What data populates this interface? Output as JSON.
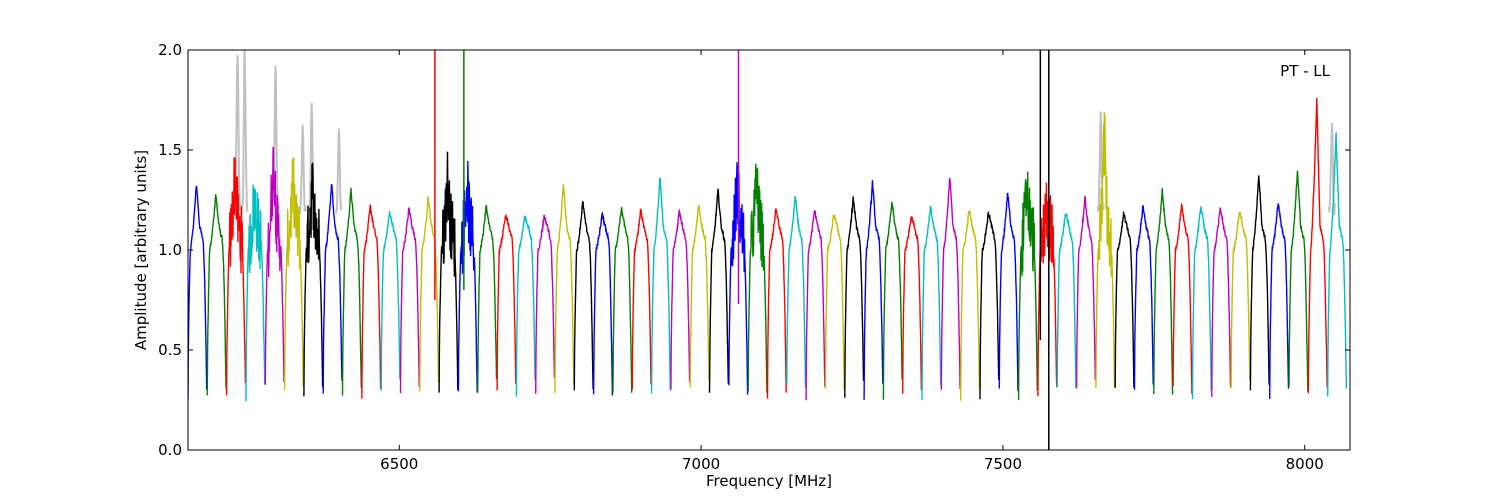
{
  "chart_data": {
    "type": "line",
    "title": "",
    "annotation": "PT - LL",
    "xlabel": "Frequency [MHz]",
    "ylabel": "Amplitude [arbitrary units]",
    "xlim": [
      6150,
      8075
    ],
    "ylim": [
      0.0,
      2.0
    ],
    "xticks": [
      6500,
      7000,
      7500,
      8000
    ],
    "xtick_labels": [
      "6500",
      "7000",
      "7500",
      "8000"
    ],
    "yticks": [
      0.0,
      0.5,
      1.0,
      1.5,
      2.0
    ],
    "ytick_labels": [
      "0.0",
      "0.5",
      "1.0",
      "1.5",
      "2.0"
    ],
    "grid": false,
    "legend": "none",
    "color_cycle": [
      "#0000ff",
      "#008000",
      "#ff0000",
      "#00bfbf",
      "#bf00bf",
      "#bfbf00",
      "#000000"
    ],
    "background_color": "#c0c0c0",
    "channel_width_mhz": 32,
    "bands": [
      {
        "start": 6150,
        "peak": 1.33,
        "rfi": false
      },
      {
        "start": 6182,
        "peak": 1.28,
        "rfi": false
      },
      {
        "start": 6214,
        "peak": 1.4,
        "rfi": true
      },
      {
        "start": 6246,
        "peak": 1.25,
        "rfi": true
      },
      {
        "start": 6278,
        "peak": 1.46,
        "rfi": true
      },
      {
        "start": 6310,
        "peak": 1.33,
        "rfi": true
      },
      {
        "start": 6342,
        "peak": 1.32,
        "rfi": true
      },
      {
        "start": 6374,
        "peak": 1.34,
        "rfi": false
      },
      {
        "start": 6406,
        "peak": 1.3,
        "rfi": false
      },
      {
        "start": 6438,
        "peak": 1.22,
        "rfi": false
      },
      {
        "start": 6470,
        "peak": 1.19,
        "rfi": false
      },
      {
        "start": 6502,
        "peak": 1.21,
        "rfi": false
      },
      {
        "start": 6534,
        "peak": 1.26,
        "rfi": false
      },
      {
        "start": 6566,
        "peak": 1.35,
        "rfi": true
      },
      {
        "start": 6598,
        "peak": 1.33,
        "rfi": true
      },
      {
        "start": 6630,
        "peak": 1.22,
        "rfi": false
      },
      {
        "start": 6662,
        "peak": 1.18,
        "rfi": false
      },
      {
        "start": 6694,
        "peak": 1.17,
        "rfi": false
      },
      {
        "start": 6726,
        "peak": 1.17,
        "rfi": false
      },
      {
        "start": 6758,
        "peak": 1.33,
        "rfi": false
      },
      {
        "start": 6790,
        "peak": 1.24,
        "rfi": false
      },
      {
        "start": 6822,
        "peak": 1.18,
        "rfi": false
      },
      {
        "start": 6854,
        "peak": 1.21,
        "rfi": false
      },
      {
        "start": 6886,
        "peak": 1.2,
        "rfi": false
      },
      {
        "start": 6918,
        "peak": 1.37,
        "rfi": false
      },
      {
        "start": 6950,
        "peak": 1.2,
        "rfi": false
      },
      {
        "start": 6982,
        "peak": 1.22,
        "rfi": false
      },
      {
        "start": 7014,
        "peak": 1.3,
        "rfi": false
      },
      {
        "start": 7046,
        "peak": 1.33,
        "rfi": true
      },
      {
        "start": 7078,
        "peak": 1.34,
        "rfi": true
      },
      {
        "start": 7110,
        "peak": 1.21,
        "rfi": false
      },
      {
        "start": 7142,
        "peak": 1.27,
        "rfi": false
      },
      {
        "start": 7174,
        "peak": 1.2,
        "rfi": false
      },
      {
        "start": 7206,
        "peak": 1.18,
        "rfi": false
      },
      {
        "start": 7238,
        "peak": 1.26,
        "rfi": false
      },
      {
        "start": 7270,
        "peak": 1.34,
        "rfi": false
      },
      {
        "start": 7302,
        "peak": 1.24,
        "rfi": false
      },
      {
        "start": 7334,
        "peak": 1.17,
        "rfi": false
      },
      {
        "start": 7366,
        "peak": 1.21,
        "rfi": false
      },
      {
        "start": 7398,
        "peak": 1.37,
        "rfi": false
      },
      {
        "start": 7430,
        "peak": 1.2,
        "rfi": false
      },
      {
        "start": 7462,
        "peak": 1.19,
        "rfi": false
      },
      {
        "start": 7494,
        "peak": 1.29,
        "rfi": false
      },
      {
        "start": 7526,
        "peak": 1.31,
        "rfi": true
      },
      {
        "start": 7558,
        "peak": 1.2,
        "rfi": true
      },
      {
        "start": 7590,
        "peak": 1.19,
        "rfi": false
      },
      {
        "start": 7622,
        "peak": 1.26,
        "rfi": false
      },
      {
        "start": 7654,
        "peak": 1.58,
        "rfi": true
      },
      {
        "start": 7686,
        "peak": 1.18,
        "rfi": false
      },
      {
        "start": 7718,
        "peak": 1.22,
        "rfi": false
      },
      {
        "start": 7750,
        "peak": 1.3,
        "rfi": false
      },
      {
        "start": 7782,
        "peak": 1.23,
        "rfi": false
      },
      {
        "start": 7814,
        "peak": 1.22,
        "rfi": false
      },
      {
        "start": 7846,
        "peak": 1.21,
        "rfi": false
      },
      {
        "start": 7878,
        "peak": 1.2,
        "rfi": false
      },
      {
        "start": 7910,
        "peak": 1.38,
        "rfi": false
      },
      {
        "start": 7942,
        "peak": 1.24,
        "rfi": false
      },
      {
        "start": 7974,
        "peak": 1.4,
        "rfi": false
      },
      {
        "start": 8006,
        "peak": 1.76,
        "rfi": false
      },
      {
        "start": 8038,
        "peak": 1.58,
        "rfi": false
      }
    ],
    "spikes": [
      {
        "x": 6559,
        "y0": 0.75,
        "y1": 2.0,
        "color": "#ff0000"
      },
      {
        "x": 6607,
        "y0": 0.8,
        "y1": 2.0,
        "color": "#008000"
      },
      {
        "x": 7062,
        "y0": 0.73,
        "y1": 2.0,
        "color": "#bf00bf"
      },
      {
        "x": 7562,
        "y0": 0.55,
        "y1": 2.0,
        "color": "#000000"
      },
      {
        "x": 7576,
        "y0": 0.0,
        "y1": 2.0,
        "color": "#000000"
      }
    ],
    "flagged_peaks": [
      {
        "x": 6232,
        "y": 2.0
      },
      {
        "x": 6244,
        "y": 2.0
      },
      {
        "x": 6295,
        "y": 1.95
      },
      {
        "x": 6340,
        "y": 1.6
      },
      {
        "x": 6355,
        "y": 1.74
      },
      {
        "x": 6400,
        "y": 1.58
      },
      {
        "x": 7662,
        "y": 1.66
      },
      {
        "x": 8045,
        "y": 1.63
      }
    ]
  }
}
